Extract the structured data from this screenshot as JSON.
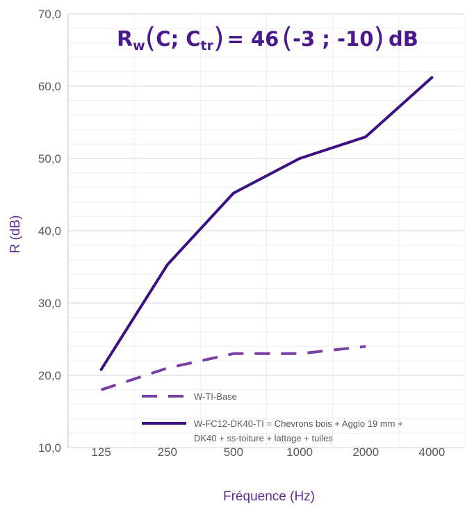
{
  "chart_data": {
    "type": "line",
    "categories": [
      "125",
      "250",
      "500",
      "1000",
      "2000",
      "4000"
    ],
    "ylim": [
      10,
      70
    ],
    "yticks": [
      "10,0",
      "20,0",
      "30,0",
      "40,0",
      "50,0",
      "60,0",
      "70,0"
    ],
    "ylabel": "R (dB)",
    "xlabel": "Fréquence (Hz)",
    "grid": true,
    "legend_position": "bottom-right",
    "annotation": {
      "main": "R",
      "main_sub": "w",
      "open": "(",
      "c": "C; C",
      "c_sub": "tr",
      "close": ")",
      "eq": "= 46",
      "open2": "(",
      "vals": "-3 ; -10",
      "close2": ")",
      "unit": "dB"
    },
    "series": [
      {
        "name": "W-TI-Base",
        "style": "dashed",
        "color": "#7a3fa6",
        "values": [
          18.0,
          21.0,
          23.0,
          23.0,
          24.0,
          null
        ]
      },
      {
        "name": "W-FC12-DK40-TI = Chevrons bois + Agglo 19 mm +",
        "name_line2": "DK40 + ss-toiture + lattage + tuiles",
        "style": "solid",
        "color": "#3b1080",
        "values": [
          20.8,
          35.3,
          45.2,
          50.0,
          53.0,
          61.2
        ]
      }
    ]
  }
}
